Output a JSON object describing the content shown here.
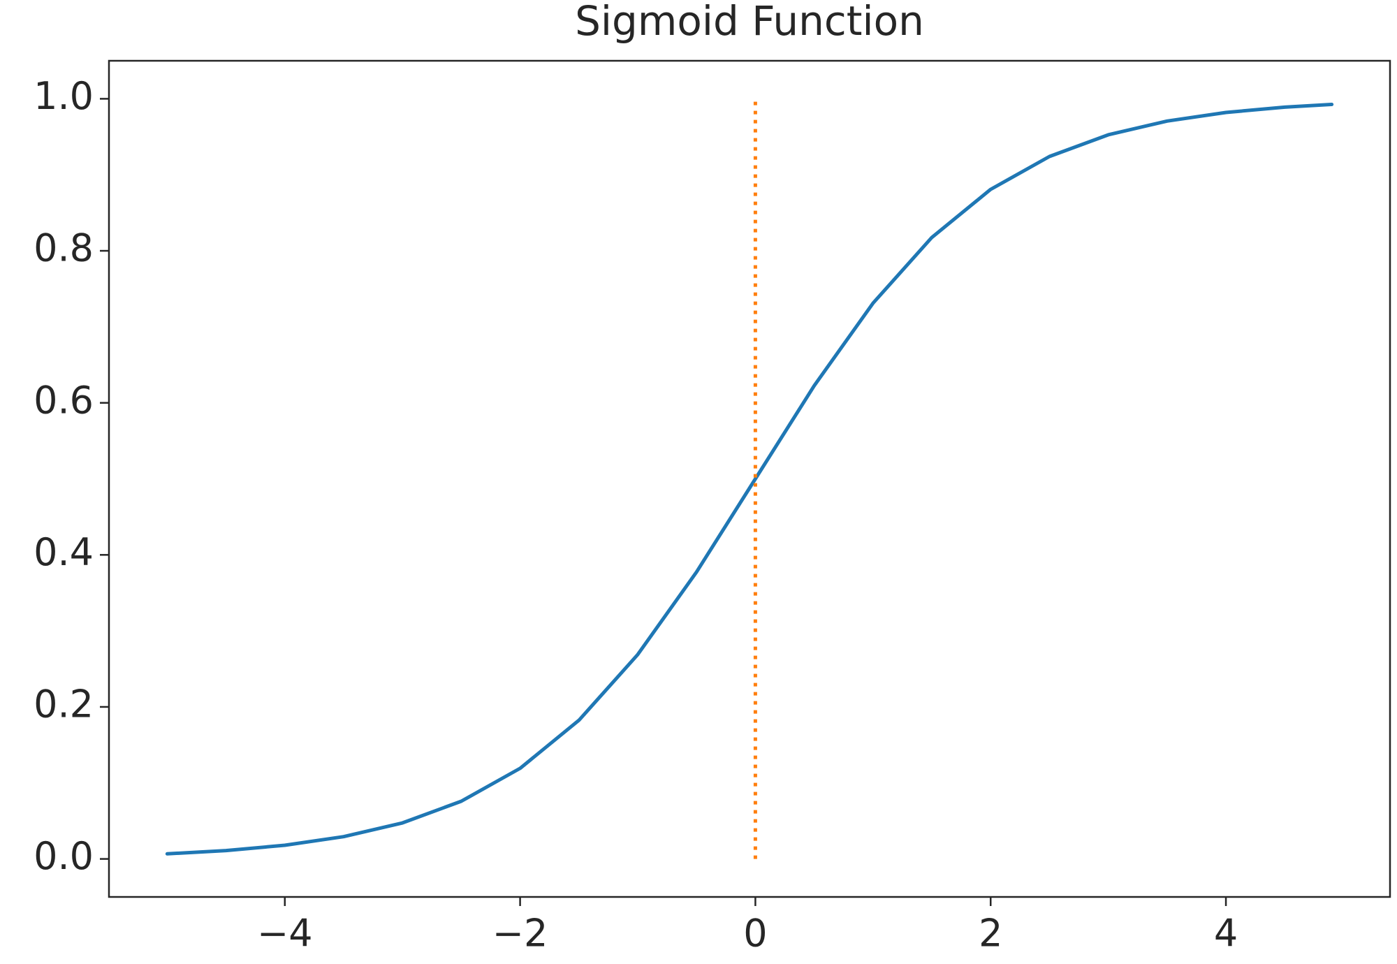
{
  "chart_data": {
    "type": "line",
    "title": "Sigmoid Function",
    "series": [
      {
        "color": "#1f77b4",
        "style": "solid",
        "x": [
          -5,
          -4.5,
          -4,
          -3.5,
          -3,
          -2.5,
          -2,
          -1.5,
          -1,
          -0.5,
          0,
          0.5,
          1,
          1.5,
          2,
          2.5,
          3,
          3.5,
          4,
          4.5,
          4.9
        ],
        "values": [
          0.0067,
          0.011,
          0.018,
          0.0293,
          0.0474,
          0.0759,
          0.1192,
          0.1824,
          0.2689,
          0.3775,
          0.5,
          0.6225,
          0.7311,
          0.8176,
          0.8808,
          0.9241,
          0.9526,
          0.9707,
          0.982,
          0.989,
          0.9926
        ]
      },
      {
        "color": "#ff7f0e",
        "style": "dotted",
        "x": [
          0,
          0
        ],
        "values": [
          0,
          1
        ]
      }
    ],
    "xlim": [
      -5.495,
      5.395
    ],
    "ylim": [
      -0.05,
      1.05
    ],
    "xticks": [
      {
        "value": -4,
        "label": "−4"
      },
      {
        "value": -2,
        "label": "−2"
      },
      0,
      2,
      4
    ],
    "yticks": [
      {
        "value": 0,
        "label": "0.0"
      },
      0.2,
      0.4,
      0.6,
      0.8,
      {
        "value": 1,
        "label": "1.0"
      }
    ],
    "grid": false
  }
}
